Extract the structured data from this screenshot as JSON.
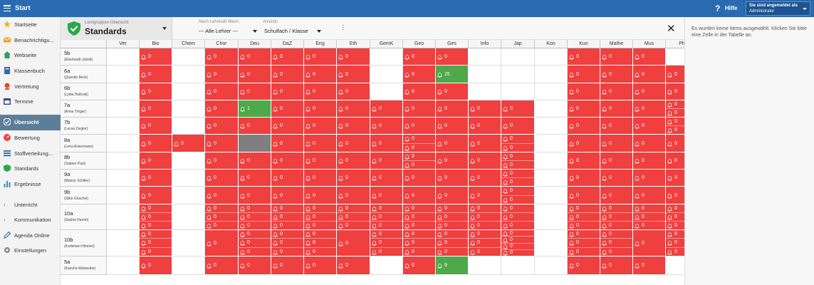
{
  "topbar": {
    "title": "Start",
    "help_label": "Hilfe",
    "account_line1": "Sie sind angemeldet als",
    "account_line2": "Administrator"
  },
  "sidebar": {
    "items": [
      {
        "label": "Startseite",
        "icon": "star-icon",
        "color": "#f0b400"
      },
      {
        "label": "Benachrichtigu...",
        "icon": "envelope-icon",
        "color": "#f0a020"
      },
      {
        "label": "Webseite",
        "icon": "home-icon",
        "color": "#2a9d6b"
      },
      {
        "label": "Klassenbuch",
        "icon": "book-icon",
        "color": "#2a6bb0"
      },
      {
        "label": "Vertretung",
        "icon": "person-icon",
        "color": "#d9482b"
      },
      {
        "label": "Termine",
        "icon": "calendar-icon",
        "color": "#2f4f7f"
      },
      {
        "label": "Übersicht",
        "icon": "check-circle-icon",
        "color": "#ffffff",
        "active": true
      },
      {
        "label": "Bewertung",
        "icon": "gauge-icon",
        "color": "#e44"
      },
      {
        "label": "Stoffverteilung...",
        "icon": "list-icon",
        "color": "#2a6bb0"
      },
      {
        "label": "Standards",
        "icon": "shield-icon",
        "color": "#2aa84a"
      },
      {
        "label": "Ergebnisse",
        "icon": "bar-chart-icon",
        "color": "#2a8fd0"
      },
      {
        "label": "Unterricht",
        "icon": "chevron-right-icon",
        "color": "#777"
      },
      {
        "label": "Kommunikation",
        "icon": "chevron-right-icon",
        "color": "#777"
      },
      {
        "label": "Agenda Online",
        "icon": "pen-icon",
        "color": "#2a6bb0"
      },
      {
        "label": "Einstellungen",
        "icon": "gear-icon",
        "color": "#888"
      }
    ]
  },
  "header": {
    "selector_small": "Lerngruppen-Übersicht",
    "selector_big": "Standards",
    "filter_label": "Nach Lehrkraft filtern:",
    "filter_value": "--- Alle Lehrer ---",
    "view_label": "Ansicht:",
    "view_value": "Schulfach / Klasse"
  },
  "rightpanel": {
    "message": "Es wurden keine Items ausgewählt. Klicken Sie bitte eine Zelle in der Tabelle an."
  },
  "colors": {
    "red": "#ef3f3f",
    "green": "#4fa84a",
    "gray": "#7f7f7f"
  },
  "table": {
    "columns": [
      "Ver",
      "Bio",
      "Chem",
      "Chor",
      "Deu",
      "DaZ",
      "Eng",
      "Eth",
      "GemK",
      "Geo",
      "Ges",
      "Info",
      "Jap",
      "Kon",
      "Kun",
      "Mathe",
      "Mus",
      "Ph"
    ],
    "rows": [
      {
        "cls": "5b",
        "teacher": "(Eberhardt Jubelt)",
        "cells": [
          "w",
          [
            "0"
          ],
          "w",
          [
            "0"
          ],
          [
            "0"
          ],
          [
            "0"
          ],
          [
            "0"
          ],
          [
            "0"
          ],
          "w",
          [
            "0"
          ],
          [
            "0"
          ],
          "w",
          "w",
          "w",
          [
            "0"
          ],
          [
            "0"
          ],
          [
            "0"
          ],
          "w"
        ]
      },
      {
        "cls": "6a",
        "teacher": "(Quentin Beck)",
        "cells": [
          "w",
          [
            "0"
          ],
          "w",
          [
            "0"
          ],
          [
            "0"
          ],
          [
            "0"
          ],
          [
            "0"
          ],
          [
            "0"
          ],
          "w",
          [
            "0"
          ],
          "g:25",
          "w",
          "w",
          "w",
          [
            "0"
          ],
          [
            "0"
          ],
          [
            "0"
          ],
          [
            "0"
          ]
        ]
      },
      {
        "cls": "6b",
        "teacher": "(Lydia Hulinski)",
        "cells": [
          "w",
          [
            "0"
          ],
          "w",
          [
            "0"
          ],
          [
            "0"
          ],
          [
            "0"
          ],
          [
            "0"
          ],
          [
            "0"
          ],
          "w",
          [
            "0"
          ],
          [
            "0"
          ],
          "w",
          "w",
          "w",
          [
            "0"
          ],
          [
            "0"
          ],
          [
            "0"
          ],
          [
            "0"
          ]
        ]
      },
      {
        "cls": "7a",
        "teacher": "(Anna Tröger)",
        "cells": [
          "w",
          [
            "0"
          ],
          "w",
          [
            "0"
          ],
          "g:1",
          [
            "0"
          ],
          [
            "0"
          ],
          [
            "0"
          ],
          [
            "0"
          ],
          [
            "0"
          ],
          [
            "0"
          ],
          [
            "0"
          ],
          [
            "0"
          ],
          "w",
          [
            "0"
          ],
          [
            "0"
          ],
          [
            "0"
          ],
          [
            "0",
            "0"
          ]
        ]
      },
      {
        "cls": "7b",
        "teacher": "(Lucas Ziegler)",
        "cells": [
          "w",
          [
            "0"
          ],
          "w",
          [
            "0"
          ],
          [
            "0"
          ],
          [
            "0"
          ],
          [
            "0"
          ],
          [
            "0"
          ],
          [
            "0"
          ],
          [
            "0"
          ],
          [
            "0"
          ],
          [
            "0"
          ],
          [
            "0"
          ],
          "w",
          [
            "0"
          ],
          [
            "0"
          ],
          [
            "0"
          ],
          [
            "0",
            "0"
          ]
        ]
      },
      {
        "cls": "8a",
        "teacher": "(Lena Ackermann)",
        "cells": [
          "w",
          [
            "0"
          ],
          [
            "0"
          ],
          [
            "0"
          ],
          "gray",
          [
            "0"
          ],
          [
            "0"
          ],
          [
            "0"
          ],
          [
            "0"
          ],
          [
            "0",
            "0"
          ],
          [
            "0"
          ],
          [
            "0"
          ],
          [
            "0",
            "0"
          ],
          "w",
          [
            "0"
          ],
          [
            "0"
          ],
          [
            "0"
          ],
          [
            "0"
          ]
        ]
      },
      {
        "cls": "8b",
        "teacher": "(Sabine Paul)",
        "cells": [
          "w",
          [
            "0"
          ],
          "w",
          [
            "0"
          ],
          [
            "0"
          ],
          [
            "0"
          ],
          [
            "0"
          ],
          [
            "0"
          ],
          [
            "0"
          ],
          [
            "0",
            "0"
          ],
          [
            "0"
          ],
          [
            "0"
          ],
          [
            "0",
            "0"
          ],
          "w",
          [
            "0"
          ],
          [
            "0"
          ],
          [
            "0"
          ],
          [
            "0"
          ]
        ]
      },
      {
        "cls": "9a",
        "teacher": "(Marion Schiller)",
        "cells": [
          "w",
          [
            "0"
          ],
          "w",
          [
            "0"
          ],
          [
            "0"
          ],
          [
            "0"
          ],
          [
            "0"
          ],
          [
            "0"
          ],
          [
            "0"
          ],
          [
            "0"
          ],
          [
            "0"
          ],
          [
            "0"
          ],
          [
            "0",
            "0"
          ],
          "w",
          [
            "0"
          ],
          [
            "0"
          ],
          [
            "0"
          ],
          [
            "0"
          ]
        ]
      },
      {
        "cls": "9b",
        "teacher": "(Silke Göschel)",
        "cells": [
          "w",
          [
            "0"
          ],
          "w",
          [
            "0"
          ],
          [
            "0"
          ],
          [
            "0"
          ],
          [
            "0"
          ],
          [
            "0"
          ],
          [
            "0"
          ],
          [
            "0"
          ],
          [
            "0"
          ],
          [
            "0"
          ],
          [
            "0",
            "0"
          ],
          "w",
          [
            "0"
          ],
          [
            "0"
          ],
          [
            "0"
          ],
          [
            "0"
          ]
        ]
      },
      {
        "cls": "10a",
        "teacher": "(Saskia Hamm)",
        "cells": [
          "w",
          [
            "0",
            "0",
            "0"
          ],
          "w",
          [
            "0",
            "0",
            "0"
          ],
          [
            "0",
            "0",
            "0"
          ],
          [
            "0",
            "0",
            "0"
          ],
          [
            "0",
            "0",
            "0"
          ],
          [
            "0",
            "0",
            "0"
          ],
          [
            "0",
            "0",
            "0"
          ],
          [
            "0",
            "0",
            "0"
          ],
          [
            "0",
            "0",
            "0"
          ],
          [
            "0",
            "0",
            "0"
          ],
          [
            "0",
            "0",
            "0"
          ],
          "w",
          [
            "0",
            "0",
            "0"
          ],
          [
            "0",
            "0",
            "0"
          ],
          [
            "0",
            "0",
            "0"
          ],
          [
            "0",
            "0",
            "0"
          ]
        ]
      },
      {
        "cls": "10b",
        "teacher": "(Korbinian Himmel)",
        "cells": [
          "w",
          [
            "0",
            "0",
            "0"
          ],
          "w",
          [
            "0"
          ],
          [
            "0",
            "0",
            "0"
          ],
          [
            "0",
            "0",
            "0"
          ],
          [
            "0",
            "0",
            "0"
          ],
          [
            "0"
          ],
          [
            "0",
            "0",
            "0"
          ],
          [
            "0",
            "0",
            "0"
          ],
          [
            "0",
            "0",
            "0"
          ],
          [
            "0",
            "0",
            "0"
          ],
          [
            "0",
            "0",
            "0",
            "0"
          ],
          "w",
          [
            "0",
            "0",
            "0"
          ],
          [
            "0",
            "0",
            "0"
          ],
          [
            "0"
          ],
          [
            "0",
            "0",
            "0"
          ]
        ]
      },
      {
        "cls": "5a",
        "teacher": "(Kazuha Watanabe)",
        "cells": [
          "w",
          [
            "0"
          ],
          "w",
          [
            "0"
          ],
          [
            "0"
          ],
          [
            "0"
          ],
          [
            "0"
          ],
          [
            "0"
          ],
          "w",
          [
            "0"
          ],
          "g:9",
          "w",
          "w",
          "w",
          [
            "0"
          ],
          [
            "0"
          ],
          [
            "0"
          ],
          "w"
        ]
      }
    ]
  }
}
